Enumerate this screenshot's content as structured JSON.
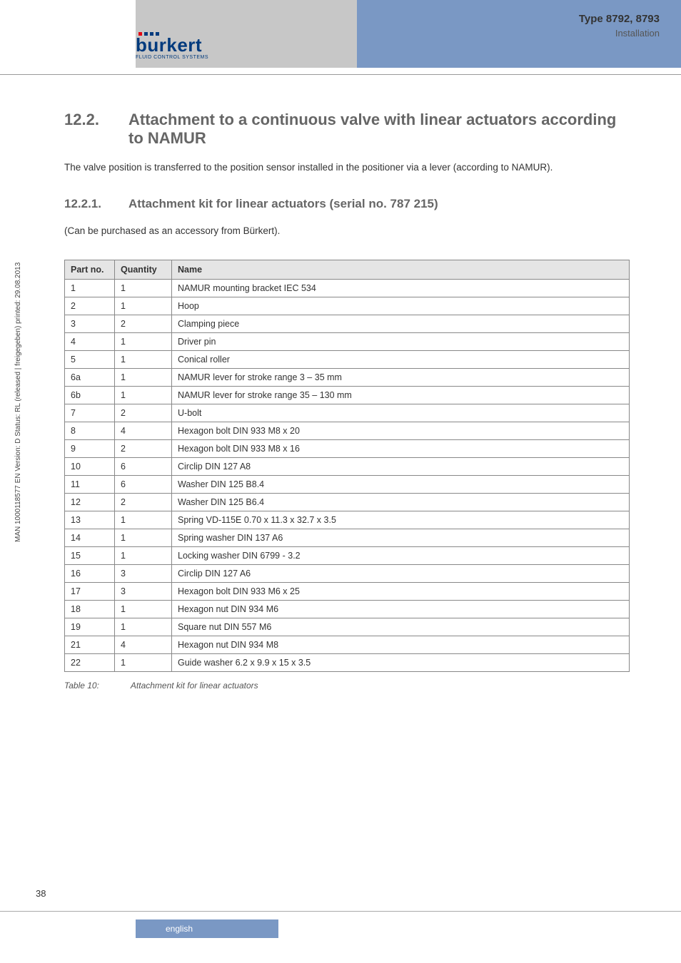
{
  "header": {
    "type_line": "Type 8792, 8793",
    "install_line": "Installation",
    "logo_text": "burkert",
    "logo_sub": "FLUID CONTROL SYSTEMS"
  },
  "section": {
    "num": "12.2.",
    "title": "Attachment to a continuous valve with linear actuators according to NAMUR",
    "intro": "The valve position is transferred to the position sensor installed in the positioner via a lever (according to NAMUR)."
  },
  "subsection": {
    "num": "12.2.1.",
    "title": "Attachment kit for linear actuators (serial no. 787 215)",
    "note": "(Can be purchased as an accessory from Bürkert)."
  },
  "table": {
    "columns": [
      "Part no.",
      "Quantity",
      "Name"
    ],
    "rows": [
      [
        "1",
        "1",
        "NAMUR mounting bracket IEC 534"
      ],
      [
        "2",
        "1",
        "Hoop"
      ],
      [
        "3",
        "2",
        "Clamping piece"
      ],
      [
        "4",
        "1",
        "Driver pin"
      ],
      [
        "5",
        "1",
        "Conical roller"
      ],
      [
        "6a",
        "1",
        "NAMUR lever for stroke range 3 – 35 mm"
      ],
      [
        "6b",
        "1",
        "NAMUR lever for stroke range 35 – 130 mm"
      ],
      [
        "7",
        "2",
        "U-bolt"
      ],
      [
        "8",
        "4",
        "Hexagon bolt DIN 933 M8 x 20"
      ],
      [
        "9",
        "2",
        "Hexagon bolt DIN 933 M8 x 16"
      ],
      [
        "10",
        "6",
        "Circlip DIN 127 A8"
      ],
      [
        "11",
        "6",
        "Washer DIN 125 B8.4"
      ],
      [
        "12",
        "2",
        "Washer DIN 125 B6.4"
      ],
      [
        "13",
        "1",
        "Spring VD-115E 0.70 x 11.3 x 32.7 x 3.5"
      ],
      [
        "14",
        "1",
        "Spring washer DIN 137 A6"
      ],
      [
        "15",
        "1",
        "Locking washer DIN 6799 - 3.2"
      ],
      [
        "16",
        "3",
        "Circlip DIN 127 A6"
      ],
      [
        "17",
        "3",
        "Hexagon bolt DIN 933 M6 x 25"
      ],
      [
        "18",
        "1",
        "Hexagon nut DIN 934 M6"
      ],
      [
        "19",
        "1",
        "Square nut DIN 557 M6"
      ],
      [
        "21",
        "4",
        "Hexagon nut DIN 934 M8"
      ],
      [
        "22",
        "1",
        "Guide washer 6.2 x 9.9 x 15 x 3.5"
      ]
    ],
    "caption_label": "Table 10:",
    "caption_text": "Attachment kit for linear actuators"
  },
  "side_text": "MAN 1000118577 EN Version: D Status: RL (released | freigegeben) printed: 29.08.2013",
  "page_num": "38",
  "footer_lang": "english",
  "colors": {
    "header_blue": "#7a98c4",
    "header_gray": "#c7c7c7",
    "logo_blue": "#003a7d",
    "logo_red": "#e30613",
    "heading_gray": "#666666",
    "th_bg": "#e5e5e5",
    "border": "#888888"
  }
}
